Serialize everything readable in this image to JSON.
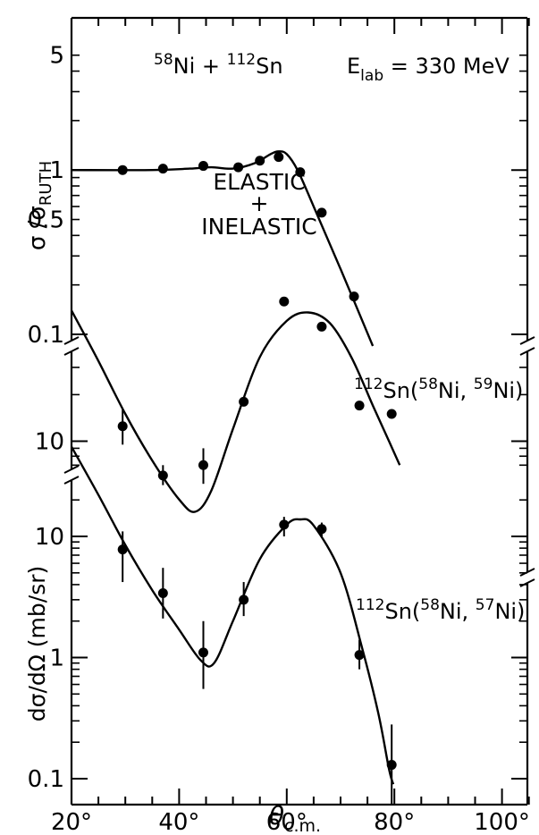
{
  "chart_data": {
    "type": "scatter",
    "x_axis": {
      "label_main": "θ",
      "label_sub": "c.m.",
      "range": [
        20,
        110
      ],
      "ticks": [
        20,
        40,
        60,
        80,
        100
      ],
      "tick_labels": [
        "20°",
        "40°",
        "60°",
        "80°",
        "100°"
      ]
    },
    "panels": [
      {
        "id": "elastic",
        "scale": "log",
        "yrange": [
          0.1,
          5
        ],
        "ylabel_main": "σ /σ",
        "ylabel_sub": "RUTH",
        "ticks": [
          0.1,
          0.5,
          1,
          5
        ],
        "tick_labels": [
          "0.1",
          "0.5",
          "1",
          "5"
        ],
        "reaction_label": {
          "a_mass": "58",
          "a_sym": "Ni",
          "plus": "+",
          "b_mass": "112",
          "b_sym": "Sn",
          "e_main": "E",
          "e_sub": "lab",
          "e_value": "= 330 MeV"
        },
        "annotation": [
          "ELASTIC",
          "+",
          "INELASTIC"
        ],
        "points": [
          [
            29.5,
            1.0
          ],
          [
            37,
            1.02
          ],
          [
            44.5,
            1.06
          ],
          [
            51,
            1.04
          ],
          [
            55,
            1.14
          ],
          [
            58.5,
            1.2
          ],
          [
            62.5,
            0.97
          ],
          [
            66.5,
            0.55
          ],
          [
            72.5,
            0.17
          ]
        ],
        "curve": [
          [
            20,
            1.0
          ],
          [
            35,
            1.0
          ],
          [
            42,
            1.02
          ],
          [
            46,
            1.04
          ],
          [
            50,
            1.02
          ],
          [
            54,
            1.1
          ],
          [
            57,
            1.25
          ],
          [
            58.5,
            1.3
          ],
          [
            60,
            1.25
          ],
          [
            62,
            1.0
          ],
          [
            65,
            0.6
          ],
          [
            70,
            0.25
          ],
          [
            76,
            0.085
          ]
        ]
      },
      {
        "id": "one_nucleon_transfer",
        "scale": "log",
        "ticks": [
          10
        ],
        "tick_labels": [
          "10"
        ],
        "reaction_label": {
          "target_mass": "112",
          "target_sym": "Sn",
          "proj_mass": "58",
          "proj_sym": "Ni",
          "eject_mass": "59",
          "eject_sym": "Ni"
        },
        "points": [
          {
            "x": 29.5,
            "y": 12.5,
            "err": [
              9.5,
              16
            ]
          },
          {
            "x": 37,
            "y": 6.0,
            "err": [
              5.2,
              7.0
            ]
          },
          {
            "x": 44.5,
            "y": 7.0,
            "err": [
              5.3,
              9.0
            ]
          },
          {
            "x": 52,
            "y": 18,
            "err": null
          },
          {
            "x": 59.5,
            "y": 80,
            "err": null
          },
          {
            "x": 66.5,
            "y": 55,
            "err": null
          },
          {
            "x": 73.5,
            "y": 17,
            "err": null
          },
          {
            "x": 79.5,
            "y": 15,
            "err": null
          }
        ],
        "curve": [
          [
            20,
            70
          ],
          [
            25,
            33
          ],
          [
            30,
            15
          ],
          [
            35,
            7.5
          ],
          [
            40,
            4.2
          ],
          [
            43,
            3.5
          ],
          [
            46,
            4.8
          ],
          [
            50,
            12
          ],
          [
            55,
            35
          ],
          [
            60,
            60
          ],
          [
            64,
            68
          ],
          [
            68,
            58
          ],
          [
            72,
            35
          ],
          [
            76,
            17
          ],
          [
            79,
            10
          ],
          [
            81,
            7
          ]
        ]
      },
      {
        "id": "one_nucleon_pickup",
        "scale": "log",
        "yrange": [
          0.1,
          50
        ],
        "ylabel": "dσ/dΩ  (mb/sr)",
        "ticks": [
          0.1,
          1,
          10
        ],
        "tick_labels": [
          "0.1",
          "1",
          "10"
        ],
        "reaction_label": {
          "target_mass": "112",
          "target_sym": "Sn",
          "proj_mass": "58",
          "proj_sym": "Ni",
          "eject_mass": "57",
          "eject_sym": "Ni"
        },
        "points": [
          {
            "x": 29.5,
            "y": 7.8,
            "err": [
              4.2,
              11
            ]
          },
          {
            "x": 37,
            "y": 3.4,
            "err": [
              2.1,
              5.5
            ]
          },
          {
            "x": 44.5,
            "y": 1.1,
            "err": [
              0.55,
              2.0
            ]
          },
          {
            "x": 52,
            "y": 3.0,
            "err": [
              2.2,
              4.2
            ]
          },
          {
            "x": 59.5,
            "y": 12.5,
            "err": [
              10,
              14.5
            ]
          },
          {
            "x": 66.5,
            "y": 11.5,
            "err": [
              10,
              13
            ]
          },
          {
            "x": 73.5,
            "y": 1.05,
            "err": [
              0.8,
              1.4
            ]
          },
          {
            "x": 79.5,
            "y": 0.13,
            "err": [
              0.06,
              0.28
            ]
          }
        ],
        "curve": [
          [
            20,
            55
          ],
          [
            25,
            22
          ],
          [
            30,
            8.5
          ],
          [
            35,
            3.6
          ],
          [
            40,
            1.7
          ],
          [
            44,
            0.95
          ],
          [
            46.5,
            0.9
          ],
          [
            50,
            2.0
          ],
          [
            55,
            6.5
          ],
          [
            60,
            12.5
          ],
          [
            62.5,
            13.8
          ],
          [
            65,
            12.3
          ],
          [
            70,
            5.0
          ],
          [
            74,
            1.2
          ],
          [
            77,
            0.35
          ],
          [
            79,
            0.12
          ],
          [
            79.8,
            0.09
          ]
        ]
      }
    ]
  }
}
